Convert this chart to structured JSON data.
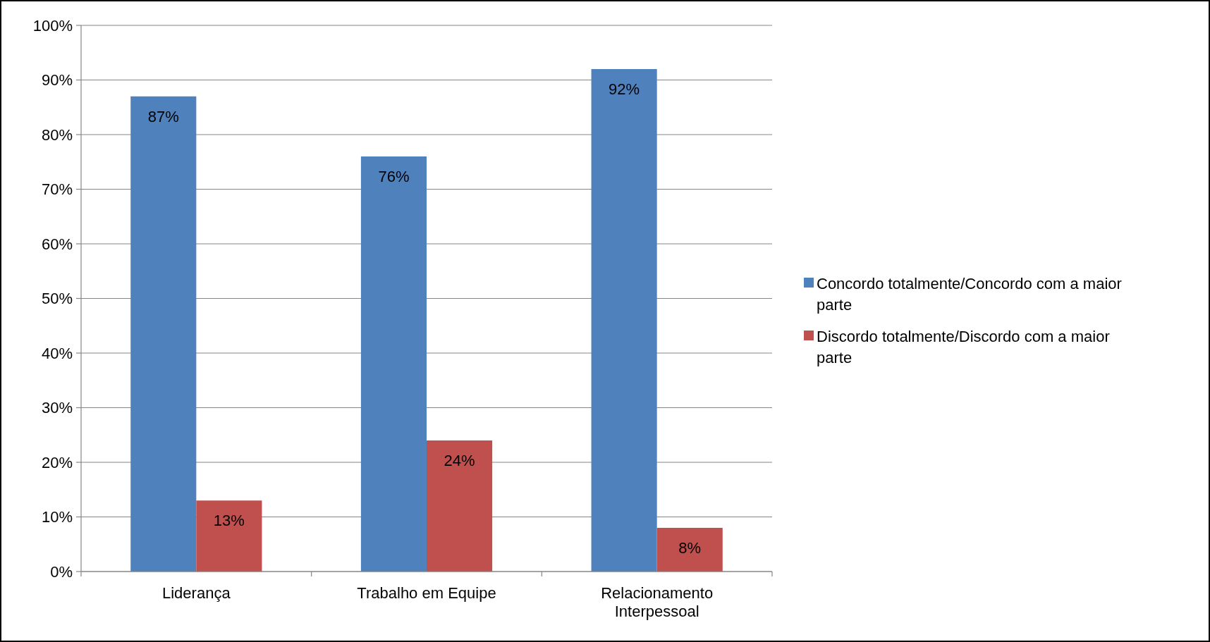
{
  "chart_data": {
    "type": "bar",
    "categories": [
      "Liderança",
      "Trabalho em Equipe",
      "Relacionamento Interpessoal"
    ],
    "series": [
      {
        "name": "Concordo totalmente/Concordo com a maior parte",
        "color": "#4f81bd",
        "values": [
          87,
          76,
          92
        ],
        "value_labels": [
          "87%",
          "76%",
          "92%"
        ]
      },
      {
        "name": "Discordo totalmente/Discordo com a maior parte",
        "color": "#c0504d",
        "values": [
          13,
          24,
          8
        ],
        "value_labels": [
          "13%",
          "24%",
          "8%"
        ]
      }
    ],
    "ylim": [
      0,
      100
    ],
    "yticks": [
      {
        "value": 0,
        "label": "0%"
      },
      {
        "value": 10,
        "label": "10%"
      },
      {
        "value": 20,
        "label": "20%"
      },
      {
        "value": 30,
        "label": "30%"
      },
      {
        "value": 40,
        "label": "40%"
      },
      {
        "value": 50,
        "label": "50%"
      },
      {
        "value": 60,
        "label": "60%"
      },
      {
        "value": 70,
        "label": "70%"
      },
      {
        "value": 80,
        "label": "80%"
      },
      {
        "value": 90,
        "label": "90%"
      },
      {
        "value": 100,
        "label": "100%"
      }
    ],
    "grid": "y",
    "legend": "right"
  }
}
